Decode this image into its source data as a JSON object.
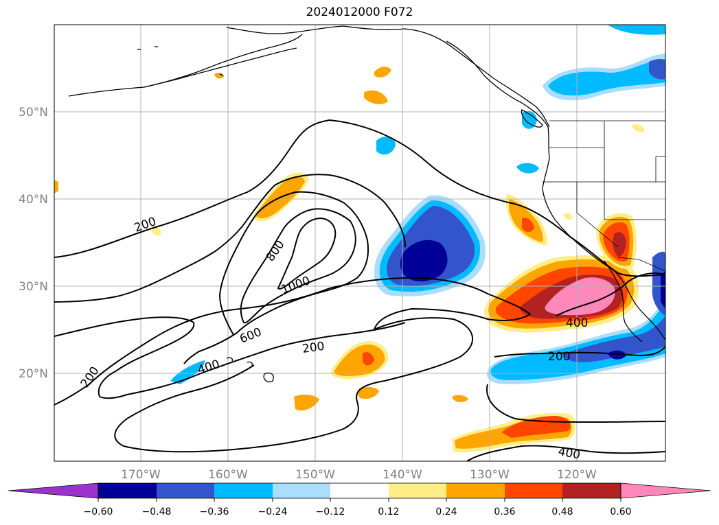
{
  "title": "2024012000 F072",
  "latitude_labels": [
    "50°N",
    "40°N",
    "30°N",
    "20°N"
  ],
  "longitude_labels": [
    "170°W",
    "160°W",
    "150°W",
    "140°W",
    "130°W",
    "120°W"
  ],
  "contour_labels": [
    "200",
    "200",
    "200",
    "200",
    "400",
    "400",
    "400",
    "600",
    "800",
    "1000"
  ],
  "colorbar": {
    "tick_labels": [
      "−0.60",
      "−0.48",
      "−0.36",
      "−0.24",
      "−0.12",
      "0.12",
      "0.24",
      "0.36",
      "0.48",
      "0.60"
    ],
    "colors": [
      "#9933cc",
      "#000099",
      "#3355cc",
      "#00bbff",
      "#aaddff",
      "#ffffff",
      "#ffee88",
      "#ffa500",
      "#ff4500",
      "#b22222",
      "#ff88bb"
    ]
  },
  "colors": {
    "grid": "#b0b0b0",
    "contour": "#000000",
    "coast": "#000000"
  }
}
